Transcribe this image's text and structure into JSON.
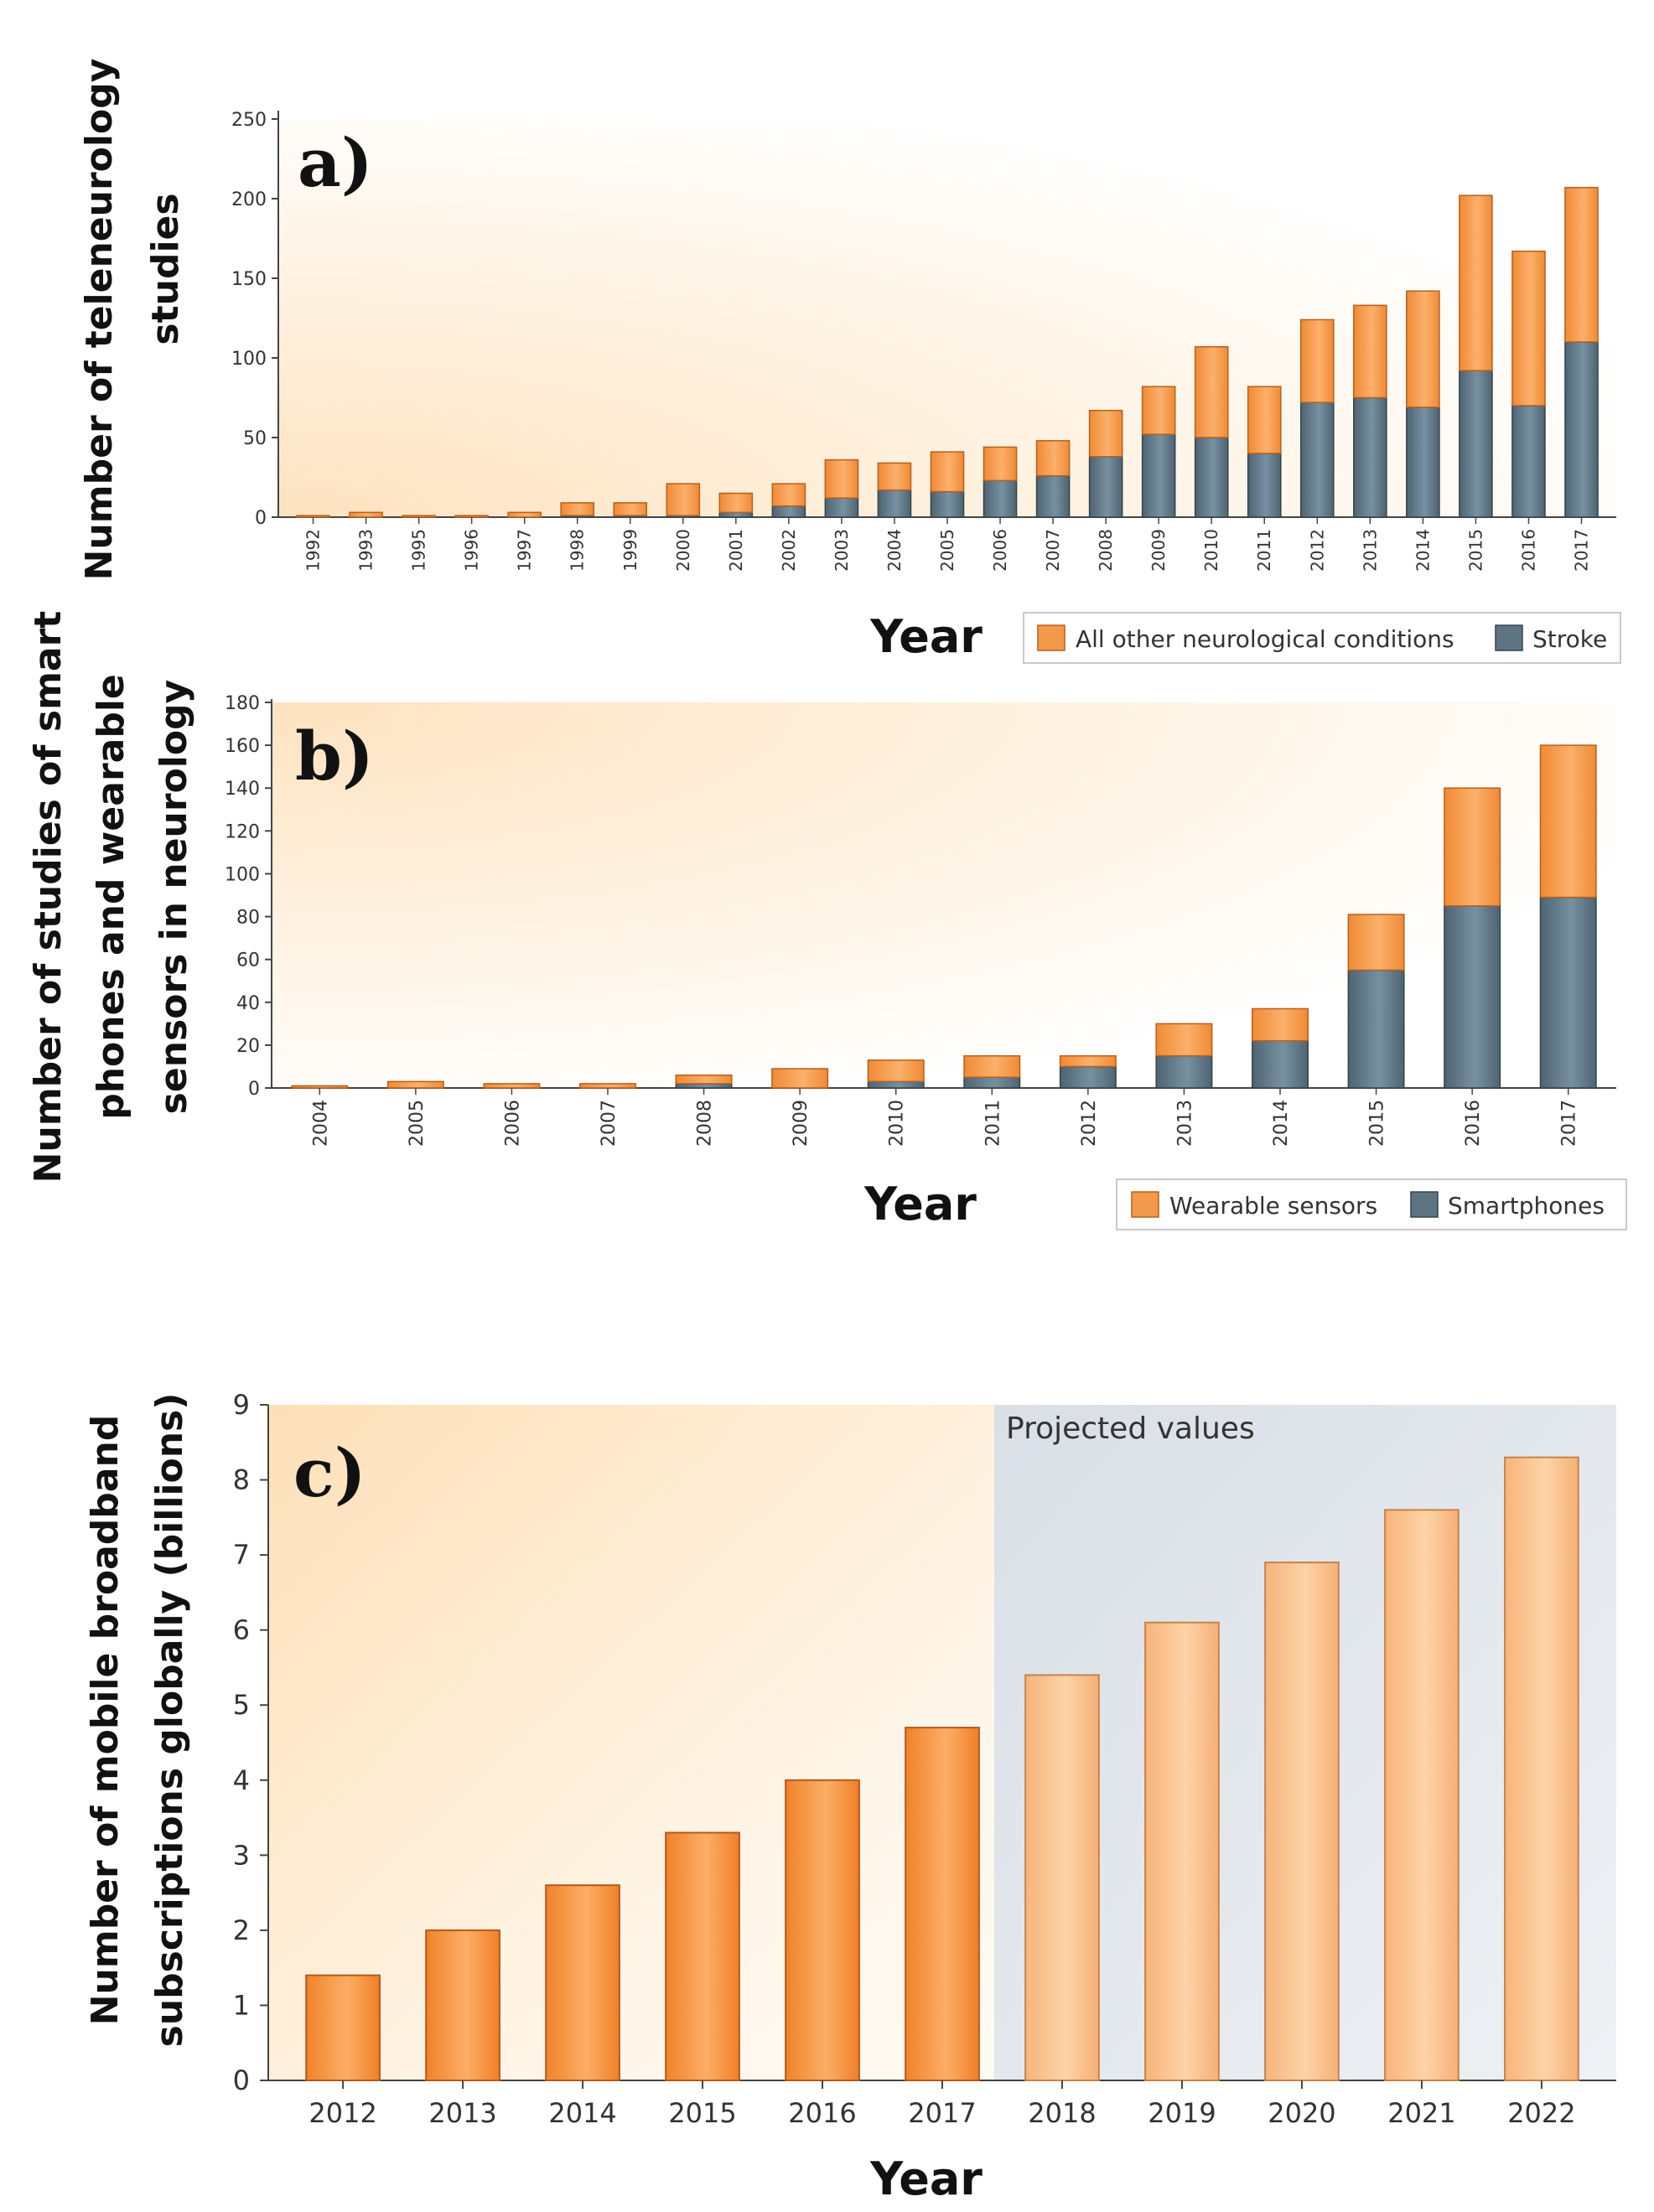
{
  "colors": {
    "orange": "#f39a4a",
    "orange_edge": "#b85f1c",
    "slate": "#5d7482",
    "slate_edge": "#34434c",
    "projected_bg": "#e3e7ec",
    "gradient_warm": "#fde7c8"
  },
  "chart_data": [
    {
      "type": "bar",
      "panel_label": "a)",
      "ylabel": "Number of teleneurology studies",
      "xlabel": "Year",
      "ylim": [
        0,
        250
      ],
      "yticks": [
        "0",
        "50",
        "100",
        "150",
        "200",
        "250"
      ],
      "categories": [
        "1992",
        "1993",
        "1995",
        "1996",
        "1997",
        "1998",
        "1999",
        "2000",
        "2001",
        "2002",
        "2003",
        "2004",
        "2005",
        "2006",
        "2007",
        "2008",
        "2009",
        "2010",
        "2011",
        "2012",
        "2013",
        "2014",
        "2015",
        "2016",
        "2017"
      ],
      "series": [
        {
          "name": "Stroke",
          "values": [
            0,
            0,
            0,
            0,
            0,
            1,
            1,
            1,
            3,
            7,
            12,
            17,
            16,
            23,
            26,
            38,
            52,
            50,
            40,
            72,
            75,
            69,
            92,
            70,
            110
          ]
        },
        {
          "name": "All other neurological conditions",
          "values": [
            1,
            3,
            1,
            1,
            3,
            8,
            8,
            20,
            12,
            14,
            24,
            17,
            25,
            21,
            22,
            29,
            30,
            57,
            42,
            52,
            58,
            73,
            110,
            97,
            97
          ]
        }
      ],
      "legend": [
        "All other neurological conditions",
        "Stroke"
      ]
    },
    {
      "type": "bar",
      "panel_label": "b)",
      "ylabel": "Number of studies of smart phones and wearable sensors in neurology",
      "xlabel": "Year",
      "ylim": [
        0,
        180
      ],
      "yticks": [
        "0",
        "20",
        "40",
        "60",
        "80",
        "100",
        "120",
        "140",
        "160",
        "180"
      ],
      "categories": [
        "2004",
        "2005",
        "2006",
        "2007",
        "2008",
        "2009",
        "2010",
        "2011",
        "2012",
        "2013",
        "2014",
        "2015",
        "2016",
        "2017"
      ],
      "series": [
        {
          "name": "Smartphones",
          "values": [
            0,
            0,
            0,
            0,
            2,
            0,
            3,
            5,
            10,
            15,
            22,
            55,
            85,
            89
          ]
        },
        {
          "name": "Wearable sensors",
          "values": [
            1,
            3,
            2,
            2,
            4,
            9,
            10,
            10,
            5,
            15,
            15,
            26,
            55,
            71
          ]
        }
      ],
      "legend": [
        "Wearable sensors",
        "Smartphones"
      ]
    },
    {
      "type": "bar",
      "panel_label": "c)",
      "ylabel": "Number of mobile broadband subscriptions globally (billions)",
      "xlabel": "Year",
      "ylim": [
        0,
        9
      ],
      "yticks": [
        "0",
        "1",
        "2",
        "3",
        "4",
        "5",
        "6",
        "7",
        "8",
        "9"
      ],
      "categories": [
        "2012",
        "2013",
        "2014",
        "2015",
        "2016",
        "2017",
        "2018",
        "2019",
        "2020",
        "2021",
        "2022"
      ],
      "values": [
        1.4,
        2.0,
        2.6,
        3.3,
        4.0,
        4.7,
        5.4,
        6.1,
        6.9,
        7.6,
        8.3
      ],
      "projected_from": "2018",
      "annotation": "Projected values"
    }
  ]
}
